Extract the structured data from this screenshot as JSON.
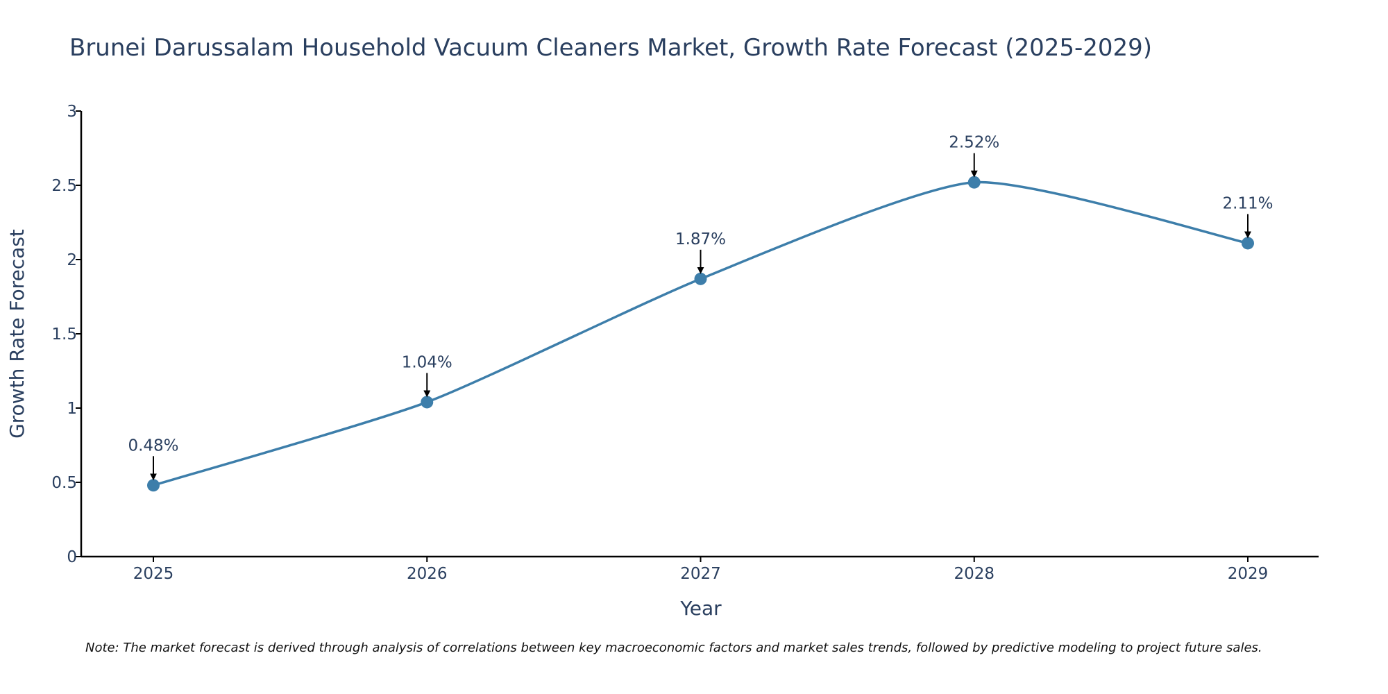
{
  "chart_data": {
    "type": "line",
    "title": "Brunei Darussalam Household Vacuum Cleaners Market, Growth Rate Forecast (2025-2029)",
    "xlabel": "Year",
    "ylabel": "Growth Rate Forecast",
    "categories": [
      "2025",
      "2026",
      "2027",
      "2028",
      "2029"
    ],
    "values": [
      0.48,
      1.04,
      1.87,
      2.52,
      2.11
    ],
    "data_labels": [
      "0.48%",
      "1.04%",
      "1.87%",
      "2.52%",
      "2.11%"
    ],
    "ylim": [
      0,
      3
    ],
    "yticks": [
      0,
      0.5,
      1,
      1.5,
      2,
      2.5,
      3
    ],
    "ytick_labels": [
      "0",
      "0.5",
      "1",
      "1.5",
      "2",
      "2.5",
      "3"
    ],
    "grid": false,
    "line_color": "#3d7eaa",
    "note": "Note: The market forecast is derived through analysis of correlations between key macroeconomic factors and market sales trends, followed by predictive modeling to project future sales."
  }
}
